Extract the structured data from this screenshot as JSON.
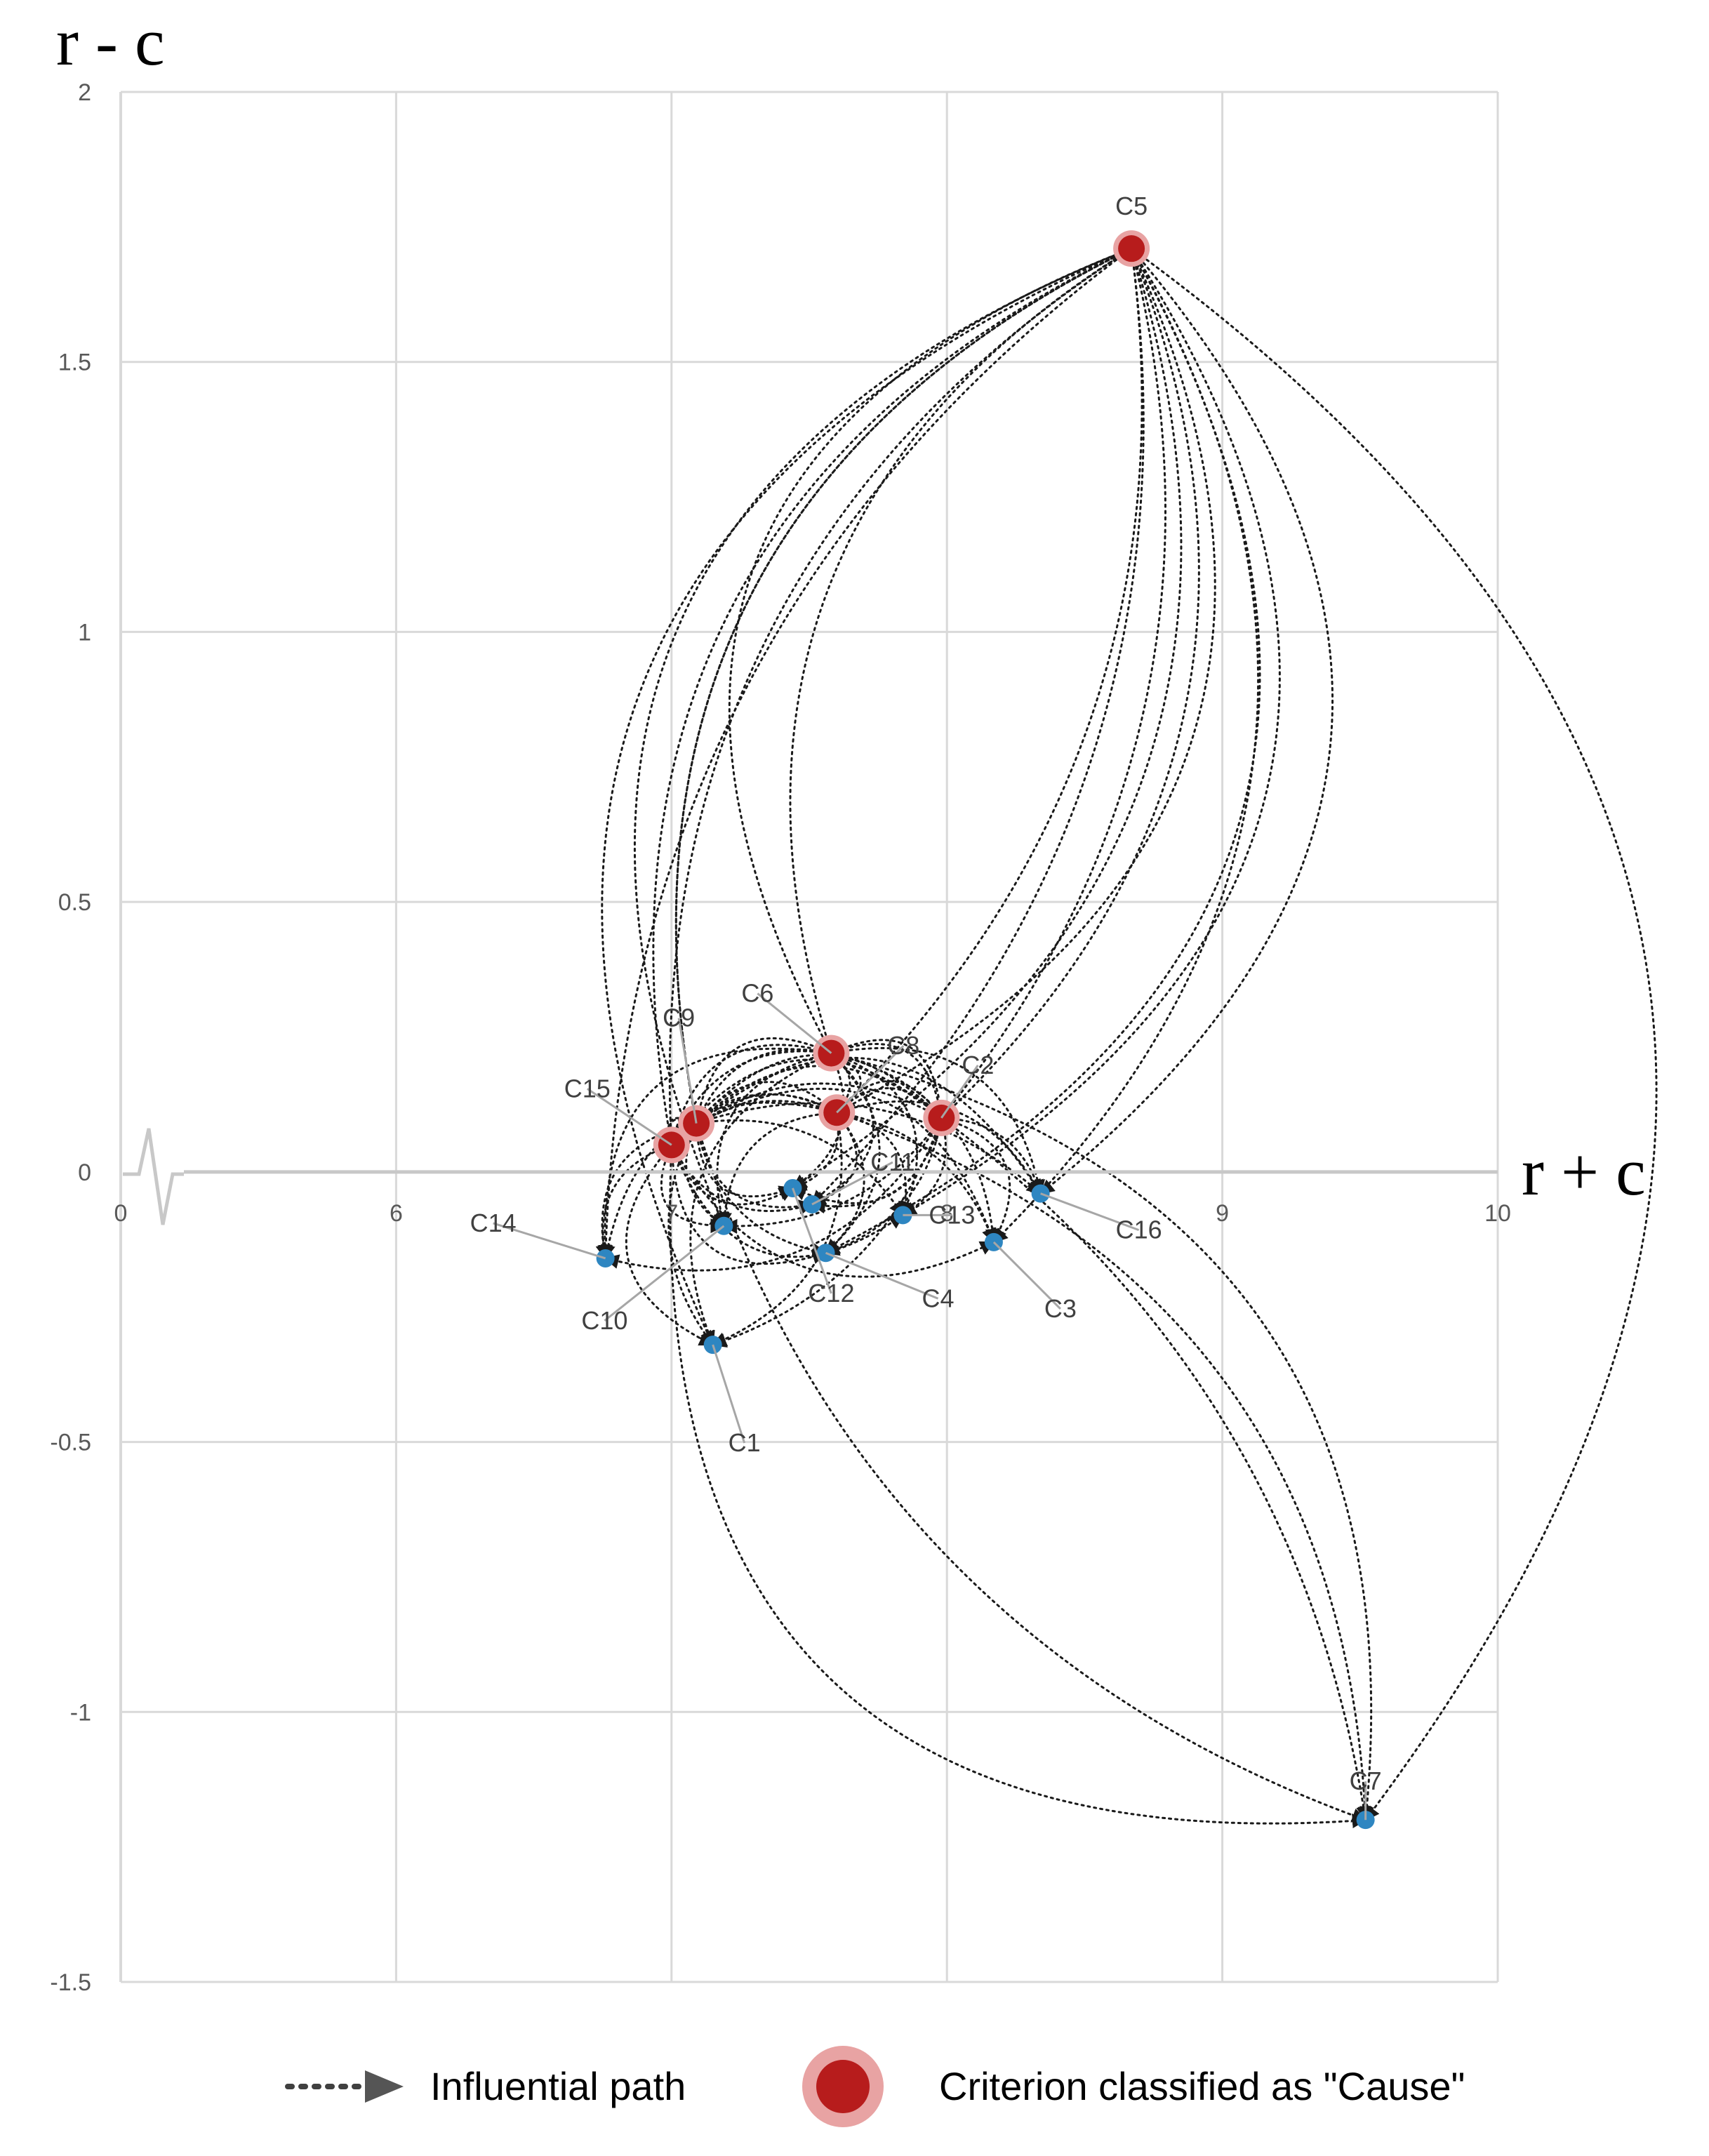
{
  "chart_data": {
    "type": "scatter",
    "title": "",
    "xlabel": "r + c",
    "ylabel": "r - c",
    "x_ticks": [
      "0",
      "6",
      "7",
      "8",
      "9",
      "10"
    ],
    "y_ticks": [
      "2",
      "1.5",
      "1",
      "0.5",
      "0",
      "-0.5",
      "-1",
      "-1.5"
    ],
    "x_axis_break": true,
    "ylim": [
      -1.5,
      2
    ],
    "xlim_after_break": [
      5,
      10
    ],
    "grid": true,
    "colors": {
      "cause": "#b71c1c",
      "effect": "#2e86c1",
      "path": "#1a1a1a",
      "grid": "#d9d9d9"
    },
    "points": [
      {
        "label": "C1",
        "x": 7.15,
        "y": -0.32,
        "class": "effect"
      },
      {
        "label": "C2",
        "x": 7.98,
        "y": 0.1,
        "class": "cause"
      },
      {
        "label": "C3",
        "x": 8.17,
        "y": -0.13,
        "class": "effect"
      },
      {
        "label": "C4",
        "x": 7.56,
        "y": -0.15,
        "class": "effect"
      },
      {
        "label": "C5",
        "x": 8.67,
        "y": 1.71,
        "class": "cause"
      },
      {
        "label": "C6",
        "x": 7.58,
        "y": 0.22,
        "class": "cause"
      },
      {
        "label": "C7",
        "x": 9.52,
        "y": -1.2,
        "class": "effect"
      },
      {
        "label": "C8",
        "x": 7.6,
        "y": 0.11,
        "class": "cause"
      },
      {
        "label": "C9",
        "x": 7.09,
        "y": 0.09,
        "class": "cause"
      },
      {
        "label": "C10",
        "x": 7.19,
        "y": -0.1,
        "class": "effect"
      },
      {
        "label": "C11",
        "x": 7.51,
        "y": -0.06,
        "class": "effect"
      },
      {
        "label": "C12",
        "x": 7.44,
        "y": -0.03,
        "class": "effect"
      },
      {
        "label": "C13",
        "x": 7.84,
        "y": -0.08,
        "class": "effect"
      },
      {
        "label": "C14",
        "x": 6.76,
        "y": -0.16,
        "class": "effect"
      },
      {
        "label": "C15",
        "x": 7.0,
        "y": 0.05,
        "class": "cause"
      },
      {
        "label": "C16",
        "x": 8.34,
        "y": -0.04,
        "class": "effect"
      }
    ],
    "legend": {
      "path_label": "Influential path",
      "cause_label": "Criterion classified as \"Cause\""
    }
  }
}
